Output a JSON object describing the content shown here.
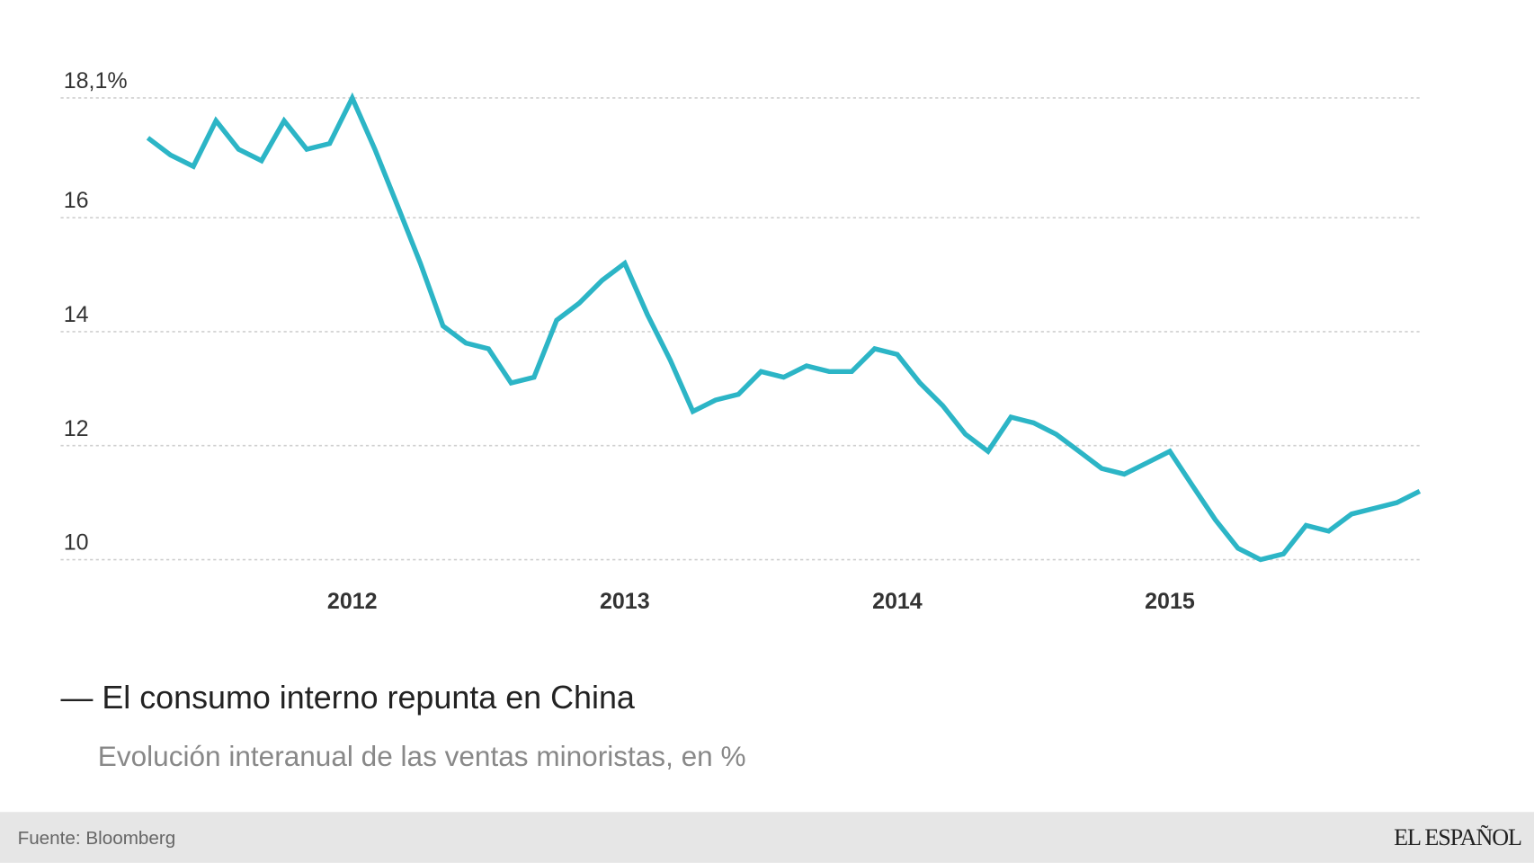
{
  "chart_data": {
    "type": "line",
    "title": "— El consumo interno repunta en China",
    "subtitle": "Evolución interanual de las ventas minoristas, en %",
    "source": "Fuente: Bloomberg",
    "brand": "EL ESPAÑOL",
    "x": [
      2011.25,
      2011.333,
      2011.417,
      2011.5,
      2011.583,
      2011.667,
      2011.75,
      2011.833,
      2011.917,
      2012.0,
      2012.083,
      2012.167,
      2012.25,
      2012.333,
      2012.417,
      2012.5,
      2012.583,
      2012.667,
      2012.75,
      2012.833,
      2012.917,
      2013.0,
      2013.083,
      2013.167,
      2013.25,
      2013.333,
      2013.417,
      2013.5,
      2013.583,
      2013.667,
      2013.75,
      2013.833,
      2013.917,
      2014.0,
      2014.083,
      2014.167,
      2014.25,
      2014.333,
      2014.417,
      2014.5,
      2014.583,
      2014.667,
      2014.75,
      2014.833,
      2014.917,
      2015.0,
      2015.083,
      2015.167,
      2015.25,
      2015.333,
      2015.417,
      2015.5,
      2015.583,
      2015.667,
      2015.75,
      2015.833,
      2015.917
    ],
    "series": [
      {
        "name": "Ventas minoristas",
        "color": "#2cb5c6",
        "values": [
          17.4,
          17.1,
          16.9,
          17.7,
          17.2,
          17.0,
          17.7,
          17.2,
          17.3,
          18.1,
          17.2,
          16.2,
          15.2,
          14.1,
          13.8,
          13.7,
          13.1,
          13.2,
          14.2,
          14.5,
          14.9,
          15.2,
          14.3,
          13.5,
          12.6,
          12.8,
          12.9,
          13.3,
          13.2,
          13.4,
          13.3,
          13.3,
          13.7,
          13.6,
          13.1,
          12.7,
          12.2,
          11.9,
          12.5,
          12.4,
          12.2,
          11.9,
          11.6,
          11.5,
          11.7,
          11.9,
          11.3,
          10.7,
          10.2,
          10.0,
          10.1,
          10.6,
          10.5,
          10.8,
          10.9,
          11.0,
          11.2
        ]
      }
    ],
    "xlim": [
      2010.93,
      2015.92
    ],
    "xticks": [
      2012,
      2013,
      2014,
      2015
    ],
    "ylim": [
      10,
      18.1
    ],
    "yticks": [
      10,
      12,
      14,
      16,
      {
        "value": 18.1,
        "label": "18,1%"
      }
    ],
    "grid": true
  }
}
